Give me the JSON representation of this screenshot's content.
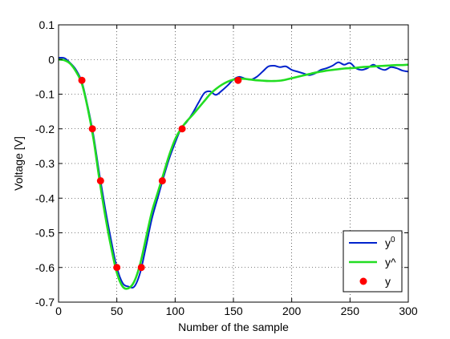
{
  "chart_data": {
    "type": "line",
    "xlabel": "Number of the sample",
    "ylabel": "Voltage [V]",
    "xlim": [
      0,
      300
    ],
    "ylim": [
      -0.7,
      0.1
    ],
    "x_ticks": [
      0,
      50,
      100,
      150,
      200,
      250,
      300
    ],
    "y_ticks": [
      0.1,
      0,
      -0.1,
      -0.2,
      -0.3,
      -0.4,
      -0.5,
      -0.6,
      -0.7
    ],
    "x_tick_labels": [
      "0",
      "50",
      "100",
      "150",
      "200",
      "250",
      "300"
    ],
    "y_tick_labels": [
      "0.1",
      "0",
      "-0.1",
      "-0.2",
      "-0.3",
      "-0.4",
      "-0.5",
      "-0.6",
      "-0.7"
    ],
    "grid": true,
    "legend_position": "bottom-right",
    "series": [
      {
        "name": "y",
        "name_superscript": "0",
        "color": "#0022cc",
        "style": "line",
        "x": [
          0,
          5,
          10,
          15,
          20,
          25,
          30,
          35,
          40,
          45,
          50,
          55,
          60,
          65,
          70,
          75,
          80,
          85,
          90,
          95,
          100,
          105,
          110,
          115,
          120,
          125,
          130,
          135,
          140,
          145,
          150,
          155,
          160,
          165,
          170,
          175,
          180,
          185,
          190,
          195,
          200,
          205,
          210,
          215,
          220,
          225,
          230,
          235,
          240,
          245,
          250,
          255,
          260,
          265,
          270,
          275,
          280,
          285,
          290,
          295,
          300
        ],
        "y": [
          0.005,
          0.004,
          -0.01,
          -0.03,
          -0.065,
          -0.135,
          -0.22,
          -0.33,
          -0.43,
          -0.52,
          -0.6,
          -0.645,
          -0.655,
          -0.655,
          -0.615,
          -0.54,
          -0.46,
          -0.4,
          -0.34,
          -0.285,
          -0.24,
          -0.2,
          -0.18,
          -0.155,
          -0.125,
          -0.097,
          -0.092,
          -0.102,
          -0.09,
          -0.075,
          -0.058,
          -0.05,
          -0.055,
          -0.058,
          -0.05,
          -0.035,
          -0.02,
          -0.018,
          -0.022,
          -0.02,
          -0.03,
          -0.035,
          -0.04,
          -0.045,
          -0.04,
          -0.03,
          -0.025,
          -0.018,
          -0.008,
          -0.015,
          -0.01,
          -0.025,
          -0.03,
          -0.025,
          -0.015,
          -0.025,
          -0.03,
          -0.022,
          -0.025,
          -0.032,
          -0.035
        ]
      },
      {
        "name": "y^",
        "color": "#22dd22",
        "style": "line",
        "x": [
          0,
          5,
          10,
          15,
          20,
          25,
          30,
          35,
          40,
          45,
          50,
          55,
          60,
          65,
          70,
          75,
          80,
          85,
          90,
          95,
          100,
          105,
          110,
          115,
          120,
          125,
          130,
          135,
          140,
          145,
          150,
          155,
          160,
          165,
          170,
          175,
          180,
          185,
          190,
          195,
          200,
          205,
          210,
          215,
          220,
          225,
          230,
          235,
          240,
          245,
          250,
          255,
          260,
          265,
          270,
          275,
          280,
          285,
          290,
          295,
          300
        ],
        "y": [
          0.0,
          -0.002,
          -0.012,
          -0.035,
          -0.07,
          -0.14,
          -0.23,
          -0.345,
          -0.45,
          -0.54,
          -0.615,
          -0.655,
          -0.66,
          -0.64,
          -0.59,
          -0.515,
          -0.44,
          -0.385,
          -0.33,
          -0.275,
          -0.23,
          -0.2,
          -0.178,
          -0.16,
          -0.14,
          -0.12,
          -0.1,
          -0.085,
          -0.073,
          -0.064,
          -0.058,
          -0.055,
          -0.056,
          -0.058,
          -0.06,
          -0.061,
          -0.062,
          -0.062,
          -0.061,
          -0.058,
          -0.054,
          -0.05,
          -0.046,
          -0.042,
          -0.038,
          -0.035,
          -0.032,
          -0.03,
          -0.028,
          -0.026,
          -0.025,
          -0.024,
          -0.022,
          -0.021,
          -0.02,
          -0.019,
          -0.018,
          -0.017,
          -0.016,
          -0.016,
          -0.015
        ]
      },
      {
        "name": "y",
        "color": "#ff0000",
        "style": "markers",
        "x": [
          20,
          29,
          36,
          50,
          71,
          89,
          106,
          154
        ],
        "y": [
          -0.06,
          -0.2,
          -0.35,
          -0.6,
          -0.6,
          -0.35,
          -0.2,
          -0.06
        ]
      }
    ]
  }
}
